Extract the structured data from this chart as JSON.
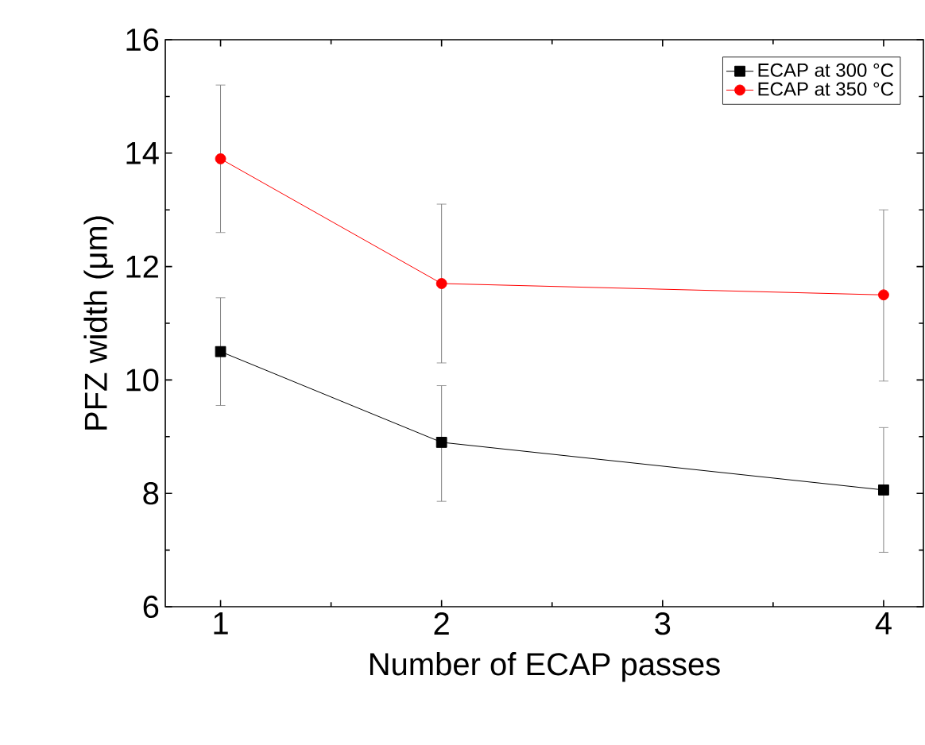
{
  "chart_data": {
    "type": "line",
    "xlabel": "Number of ECAP passes",
    "ylabel": "PFZ width (μm)",
    "x": [
      1,
      2,
      4
    ],
    "xlim": [
      0.75,
      4.18
    ],
    "xticks": [
      1,
      2,
      3,
      4
    ],
    "ylim": [
      6,
      16
    ],
    "yticks": [
      6,
      8,
      10,
      12,
      14,
      16
    ],
    "legend": "top right",
    "grid": false,
    "series": [
      {
        "name": "ECAP at 300 °C",
        "color": "#000000",
        "marker": "square",
        "values": [
          10.5,
          8.9,
          8.06
        ],
        "errors": [
          [
            9.55,
            11.45
          ],
          [
            7.86,
            9.9
          ],
          [
            6.96,
            9.16
          ]
        ]
      },
      {
        "name": "ECAP at 350 °C",
        "color": "#ff0000",
        "marker": "circle",
        "values": [
          13.9,
          11.7,
          11.5
        ],
        "errors": [
          [
            12.6,
            15.2
          ],
          [
            10.3,
            13.1
          ],
          [
            9.98,
            13.0
          ]
        ]
      }
    ]
  }
}
